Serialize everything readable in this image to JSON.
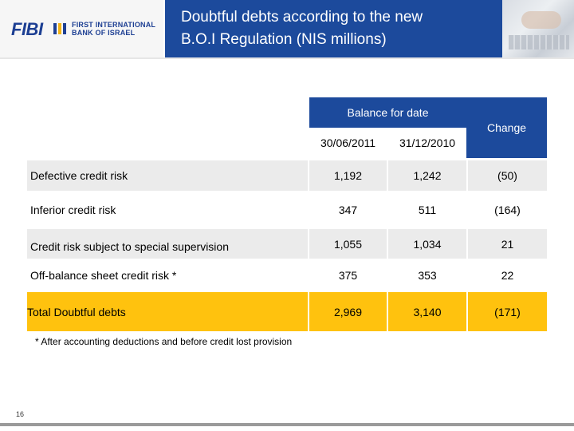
{
  "header": {
    "logo_text": "FIBI",
    "logo_sub_line1": "FIRST INTERNATIONAL",
    "logo_sub_line2": "BANK OF ISRAEL",
    "title_line1": "Doubtful debts according to the new",
    "title_line2": "B.O.I Regulation (NIS millions)"
  },
  "colors": {
    "brand_blue": "#1c4a9c",
    "total_highlight": "#ffc20e",
    "row_shade": "#ebebeb"
  },
  "table": {
    "balance_header": "Balance for date",
    "change_header": "Change",
    "date1": "30/06/2011",
    "date2": "31/12/2010",
    "rows": [
      {
        "label": "Defective credit risk",
        "v1": "1,192",
        "v2": "1,242",
        "change": "(50)"
      },
      {
        "label": "Inferior credit risk",
        "v1": "347",
        "v2": "511",
        "change": "(164)"
      },
      {
        "label": "Credit risk subject to special supervision",
        "v1": "1,055",
        "v2": "1,034",
        "change": "21"
      },
      {
        "label": "Off-balance sheet credit risk *",
        "v1": "375",
        "v2": "353",
        "change": "22"
      }
    ],
    "total": {
      "label": "Total Doubtful debts",
      "v1": "2,969",
      "v2": "3,140",
      "change": "(171)"
    }
  },
  "footnote": "* After accounting deductions and before credit lost provision",
  "page_number": "16"
}
